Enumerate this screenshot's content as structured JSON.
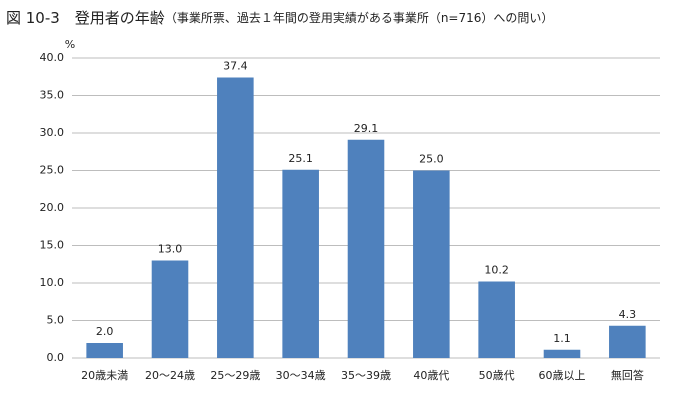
{
  "chart_data": {
    "type": "bar",
    "title": "図 10-3　登用者の年齢",
    "subtitle": "（事業所票、過去１年間の登用実績がある事業所（n=716）への問い）",
    "y_unit": "%",
    "categories": [
      "20歳未満",
      "20～24歳",
      "25～29歳",
      "30～34歳",
      "35～39歳",
      "40歳代",
      "50歳代",
      "60歳以上",
      "無回答"
    ],
    "values": [
      2.0,
      13.0,
      37.4,
      25.1,
      29.1,
      25.0,
      10.2,
      1.1,
      4.3
    ],
    "value_labels": [
      "2.0",
      "13.0",
      "37.4",
      "25.1",
      "29.1",
      "25.0",
      "10.2",
      "1.1",
      "4.3"
    ],
    "color": "#4f81bd",
    "ylim": [
      0,
      40
    ],
    "yticks": [
      {
        "value": 0,
        "label": "0.0"
      },
      {
        "value": 5,
        "label": "5.0"
      },
      {
        "value": 10,
        "label": "10.0"
      },
      {
        "value": 15,
        "label": "15.0"
      },
      {
        "value": 20,
        "label": "20.0"
      },
      {
        "value": 25,
        "label": "25.0"
      },
      {
        "value": 30,
        "label": "30.0"
      },
      {
        "value": 35,
        "label": "35.0"
      },
      {
        "value": 40,
        "label": "40.0"
      }
    ],
    "grid": true
  }
}
